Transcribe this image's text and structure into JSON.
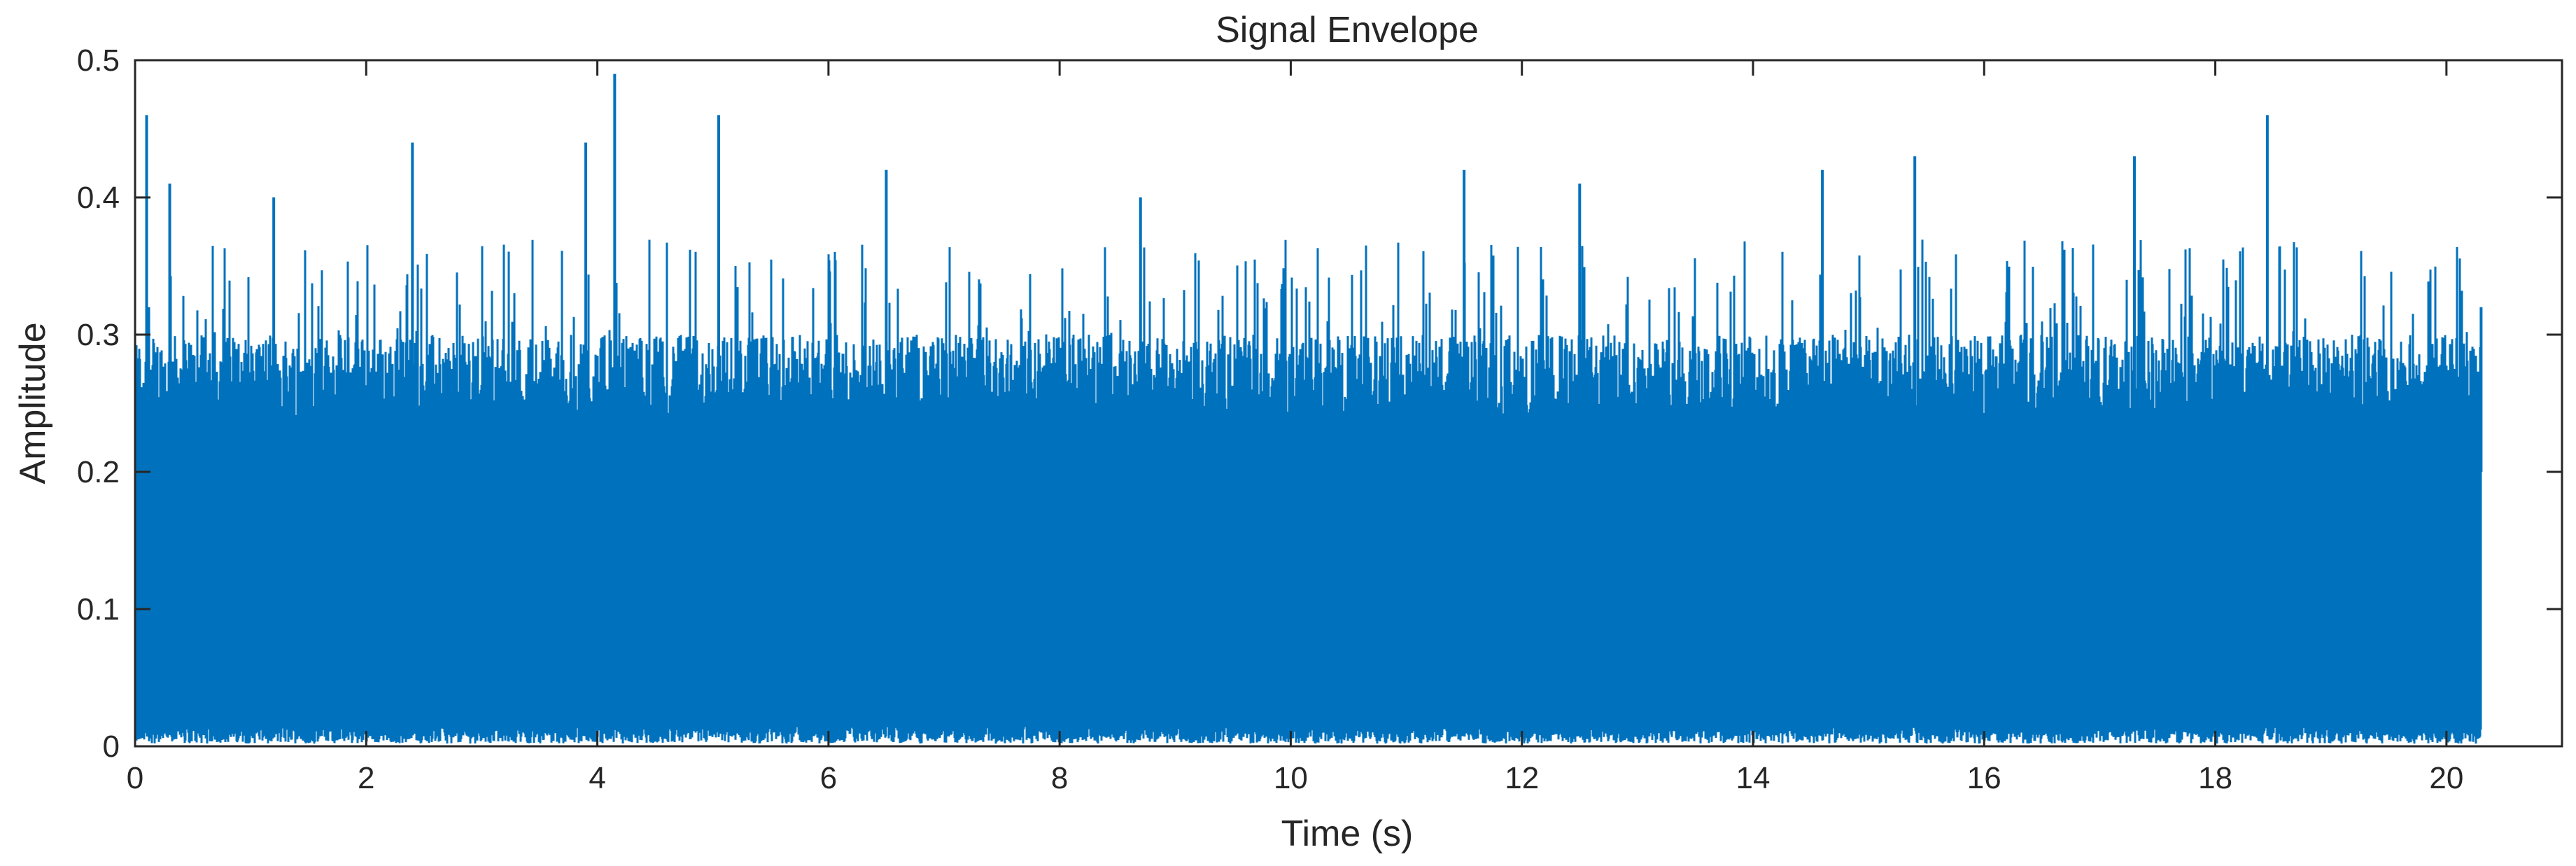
{
  "chart_data": {
    "type": "line",
    "title": "Signal Envelope",
    "xlabel": "Time (s)",
    "ylabel": "Amplitude",
    "xlim": [
      0,
      21
    ],
    "ylim": [
      0,
      0.5
    ],
    "xticks": [
      0,
      2,
      4,
      6,
      8,
      10,
      12,
      14,
      16,
      18,
      20
    ],
    "yticks": [
      0,
      0.1,
      0.2,
      0.3,
      0.4,
      0.5
    ],
    "xtick_labels": [
      "0",
      "2",
      "4",
      "6",
      "8",
      "10",
      "12",
      "14",
      "16",
      "18",
      "20"
    ],
    "ytick_labels": [
      "0",
      "0.1",
      "0.2",
      "0.3",
      "0.4",
      "0.5"
    ],
    "grid": false,
    "legend": "none",
    "series_color": "#0072BD",
    "signal": {
      "t_start": 0,
      "t_end": 20.3,
      "typical_min": 0.01,
      "typical_max": 0.3,
      "notable_peaks": [
        {
          "x": 0.1,
          "y": 0.46
        },
        {
          "x": 0.3,
          "y": 0.41
        },
        {
          "x": 1.2,
          "y": 0.4
        },
        {
          "x": 2.4,
          "y": 0.44
        },
        {
          "x": 3.9,
          "y": 0.44
        },
        {
          "x": 4.15,
          "y": 0.49
        },
        {
          "x": 5.05,
          "y": 0.46
        },
        {
          "x": 6.5,
          "y": 0.42
        },
        {
          "x": 8.7,
          "y": 0.4
        },
        {
          "x": 11.5,
          "y": 0.42
        },
        {
          "x": 12.5,
          "y": 0.41
        },
        {
          "x": 14.6,
          "y": 0.42
        },
        {
          "x": 15.4,
          "y": 0.43
        },
        {
          "x": 17.3,
          "y": 0.43
        },
        {
          "x": 18.45,
          "y": 0.46
        },
        {
          "x": 20.3,
          "y": 0.32
        }
      ]
    }
  }
}
